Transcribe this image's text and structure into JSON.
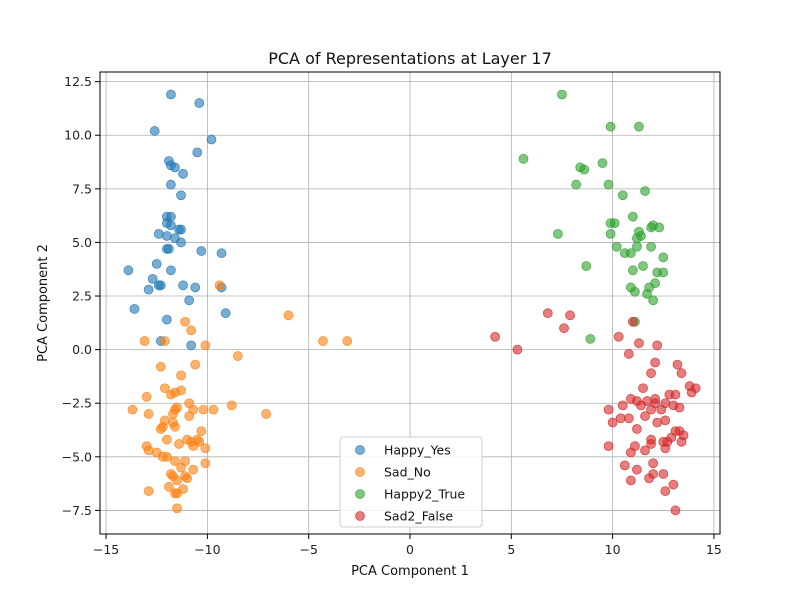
{
  "chart_data": {
    "type": "scatter",
    "title": "PCA of Representations at Layer 17",
    "xlabel": "PCA Component 1",
    "ylabel": "PCA Component 2",
    "xlim": [
      -15.3,
      15.3
    ],
    "ylim": [
      -8.6,
      12.95
    ],
    "xticks": [
      -15,
      -10,
      -5,
      0,
      5,
      10,
      15
    ],
    "yticks": [
      -7.5,
      -5.0,
      -2.5,
      0.0,
      2.5,
      5.0,
      7.5,
      10.0,
      12.5
    ],
    "xtick_labels": [
      "−15",
      "−10",
      "−5",
      "0",
      "5",
      "10",
      "15"
    ],
    "ytick_labels": [
      "−7.5",
      "−5.0",
      "−2.5",
      "0.0",
      "2.5",
      "5.0",
      "7.5",
      "10.0",
      "12.5"
    ],
    "grid": true,
    "legend_position": "lower-center",
    "series": [
      {
        "name": "Happy_Yes",
        "color": "#1f77b4",
        "points": [
          [
            -11.8,
            11.9
          ],
          [
            -10.4,
            11.5
          ],
          [
            -12.6,
            10.2
          ],
          [
            -9.8,
            9.8
          ],
          [
            -10.5,
            9.2
          ],
          [
            -11.9,
            8.8
          ],
          [
            -11.8,
            8.6
          ],
          [
            -11.6,
            8.5
          ],
          [
            -11.2,
            8.2
          ],
          [
            -11.8,
            7.7
          ],
          [
            -11.3,
            7.2
          ],
          [
            -12.0,
            6.2
          ],
          [
            -11.8,
            6.2
          ],
          [
            -12.0,
            5.9
          ],
          [
            -11.8,
            5.8
          ],
          [
            -11.4,
            5.6
          ],
          [
            -11.3,
            5.6
          ],
          [
            -12.4,
            5.4
          ],
          [
            -12.0,
            5.3
          ],
          [
            -11.6,
            5.2
          ],
          [
            -11.3,
            5.0
          ],
          [
            -12.0,
            4.7
          ],
          [
            -11.9,
            4.7
          ],
          [
            -10.3,
            4.6
          ],
          [
            -9.3,
            4.5
          ],
          [
            -12.5,
            4.0
          ],
          [
            -13.9,
            3.7
          ],
          [
            -11.8,
            3.7
          ],
          [
            -12.7,
            3.3
          ],
          [
            -12.4,
            3.0
          ],
          [
            -12.3,
            3.0
          ],
          [
            -11.2,
            3.0
          ],
          [
            -10.6,
            2.9
          ],
          [
            -9.3,
            2.9
          ],
          [
            -12.9,
            2.8
          ],
          [
            -10.9,
            2.3
          ],
          [
            -13.6,
            1.9
          ],
          [
            -9.1,
            1.7
          ],
          [
            -12.0,
            1.4
          ],
          [
            -12.3,
            0.4
          ],
          [
            -10.8,
            0.2
          ]
        ]
      },
      {
        "name": "Sad_No",
        "color": "#ff7f0e",
        "points": [
          [
            -9.4,
            3.0
          ],
          [
            -6.0,
            1.6
          ],
          [
            -11.1,
            1.3
          ],
          [
            -10.8,
            0.9
          ],
          [
            -4.3,
            0.4
          ],
          [
            -3.1,
            0.4
          ],
          [
            -13.1,
            0.4
          ],
          [
            -12.1,
            0.4
          ],
          [
            -10.1,
            0.2
          ],
          [
            -8.5,
            -0.3
          ],
          [
            -10.6,
            -0.7
          ],
          [
            -12.3,
            -0.8
          ],
          [
            -11.3,
            -1.2
          ],
          [
            -12.1,
            -1.8
          ],
          [
            -11.3,
            -1.9
          ],
          [
            -11.6,
            -2.0
          ],
          [
            -11.8,
            -2.1
          ],
          [
            -13.0,
            -2.2
          ],
          [
            -10.9,
            -2.5
          ],
          [
            -8.8,
            -2.6
          ],
          [
            -11.5,
            -2.7
          ],
          [
            -11.6,
            -2.8
          ],
          [
            -10.7,
            -2.8
          ],
          [
            -10.2,
            -2.8
          ],
          [
            -9.7,
            -2.8
          ],
          [
            -13.7,
            -2.8
          ],
          [
            -12.9,
            -3.0
          ],
          [
            -11.7,
            -3.0
          ],
          [
            -7.1,
            -3.0
          ],
          [
            -10.9,
            -3.1
          ],
          [
            -12.1,
            -3.3
          ],
          [
            -11.7,
            -3.4
          ],
          [
            -12.2,
            -3.6
          ],
          [
            -11.6,
            -3.6
          ],
          [
            -12.3,
            -3.7
          ],
          [
            -10.3,
            -3.8
          ],
          [
            -11.0,
            -4.2
          ],
          [
            -10.8,
            -4.3
          ],
          [
            -10.5,
            -4.2
          ],
          [
            -12.0,
            -4.2
          ],
          [
            -10.4,
            -4.3
          ],
          [
            -11.4,
            -4.4
          ],
          [
            -10.7,
            -4.5
          ],
          [
            -10.1,
            -4.6
          ],
          [
            -13.0,
            -4.5
          ],
          [
            -12.9,
            -4.7
          ],
          [
            -12.5,
            -4.8
          ],
          [
            -12.2,
            -5.0
          ],
          [
            -12.0,
            -5.0
          ],
          [
            -11.6,
            -5.2
          ],
          [
            -11.1,
            -5.2
          ],
          [
            -10.1,
            -5.3
          ],
          [
            -11.3,
            -5.5
          ],
          [
            -10.7,
            -5.6
          ],
          [
            -11.8,
            -5.8
          ],
          [
            -11.7,
            -5.9
          ],
          [
            -11.1,
            -5.9
          ],
          [
            -11.0,
            -6.0
          ],
          [
            -11.5,
            -6.1
          ],
          [
            -12.9,
            -6.6
          ],
          [
            -11.9,
            -6.4
          ],
          [
            -11.2,
            -6.5
          ],
          [
            -11.6,
            -6.7
          ],
          [
            -11.5,
            -6.7
          ],
          [
            -11.5,
            -7.4
          ]
        ]
      },
      {
        "name": "Happy2_True",
        "color": "#2ca02c",
        "points": [
          [
            7.5,
            11.9
          ],
          [
            9.9,
            10.4
          ],
          [
            11.3,
            10.4
          ],
          [
            5.6,
            8.9
          ],
          [
            9.5,
            8.7
          ],
          [
            8.4,
            8.5
          ],
          [
            8.6,
            8.4
          ],
          [
            8.2,
            7.7
          ],
          [
            9.8,
            7.7
          ],
          [
            11.6,
            7.4
          ],
          [
            10.5,
            7.2
          ],
          [
            11.0,
            6.2
          ],
          [
            9.9,
            5.9
          ],
          [
            10.1,
            5.9
          ],
          [
            12.0,
            5.8
          ],
          [
            11.9,
            5.7
          ],
          [
            12.3,
            5.7
          ],
          [
            7.3,
            5.4
          ],
          [
            9.9,
            5.4
          ],
          [
            11.3,
            5.5
          ],
          [
            11.4,
            5.3
          ],
          [
            11.2,
            5.2
          ],
          [
            11.2,
            4.8
          ],
          [
            10.2,
            4.8
          ],
          [
            11.9,
            4.8
          ],
          [
            10.6,
            4.5
          ],
          [
            10.9,
            4.5
          ],
          [
            12.5,
            4.3
          ],
          [
            11.5,
            3.9
          ],
          [
            8.7,
            3.9
          ],
          [
            11.0,
            3.7
          ],
          [
            12.2,
            3.6
          ],
          [
            12.5,
            3.6
          ],
          [
            12.1,
            3.1
          ],
          [
            10.9,
            2.9
          ],
          [
            11.8,
            2.9
          ],
          [
            11.1,
            2.7
          ],
          [
            11.7,
            2.6
          ],
          [
            12.0,
            2.3
          ],
          [
            11.1,
            1.3
          ],
          [
            8.9,
            0.5
          ]
        ]
      },
      {
        "name": "Sad2_False",
        "color": "#d62728",
        "points": [
          [
            6.8,
            1.7
          ],
          [
            7.9,
            1.6
          ],
          [
            7.6,
            1.0
          ],
          [
            11.0,
            1.3
          ],
          [
            4.2,
            0.6
          ],
          [
            10.3,
            0.6
          ],
          [
            11.3,
            0.3
          ],
          [
            12.2,
            0.2
          ],
          [
            5.3,
            0.0
          ],
          [
            10.8,
            -0.2
          ],
          [
            13.2,
            -0.7
          ],
          [
            12.1,
            -0.6
          ],
          [
            13.4,
            -1.1
          ],
          [
            11.9,
            -1.1
          ],
          [
            13.8,
            -1.7
          ],
          [
            14.1,
            -1.8
          ],
          [
            13.9,
            -2.0
          ],
          [
            11.5,
            -1.8
          ],
          [
            12.8,
            -2.1
          ],
          [
            13.1,
            -2.1
          ],
          [
            10.9,
            -2.3
          ],
          [
            11.2,
            -2.4
          ],
          [
            11.7,
            -2.4
          ],
          [
            12.1,
            -2.3
          ],
          [
            10.5,
            -2.6
          ],
          [
            11.4,
            -2.6
          ],
          [
            12.1,
            -2.5
          ],
          [
            12.6,
            -2.5
          ],
          [
            13.0,
            -2.6
          ],
          [
            13.3,
            -2.7
          ],
          [
            9.8,
            -2.8
          ],
          [
            11.9,
            -2.8
          ],
          [
            12.4,
            -2.8
          ],
          [
            11.6,
            -3.1
          ],
          [
            10.8,
            -3.2
          ],
          [
            10.4,
            -3.2
          ],
          [
            12.6,
            -3.3
          ],
          [
            12.2,
            -3.4
          ],
          [
            10.0,
            -3.4
          ],
          [
            11.2,
            -3.7
          ],
          [
            13.1,
            -3.8
          ],
          [
            13.3,
            -3.8
          ],
          [
            13.5,
            -4.0
          ],
          [
            12.9,
            -4.1
          ],
          [
            11.9,
            -4.2
          ],
          [
            12.5,
            -4.3
          ],
          [
            12.7,
            -4.3
          ],
          [
            13.4,
            -4.3
          ],
          [
            11.9,
            -4.4
          ],
          [
            11.1,
            -4.5
          ],
          [
            9.8,
            -4.5
          ],
          [
            12.6,
            -4.6
          ],
          [
            11.6,
            -4.7
          ],
          [
            10.9,
            -4.8
          ],
          [
            12.0,
            -5.3
          ],
          [
            10.6,
            -5.4
          ],
          [
            11.2,
            -5.6
          ],
          [
            12.5,
            -5.8
          ],
          [
            12.0,
            -5.8
          ],
          [
            11.8,
            -6.0
          ],
          [
            10.9,
            -6.1
          ],
          [
            13.0,
            -6.3
          ],
          [
            12.6,
            -6.6
          ],
          [
            13.1,
            -7.5
          ]
        ]
      }
    ]
  }
}
